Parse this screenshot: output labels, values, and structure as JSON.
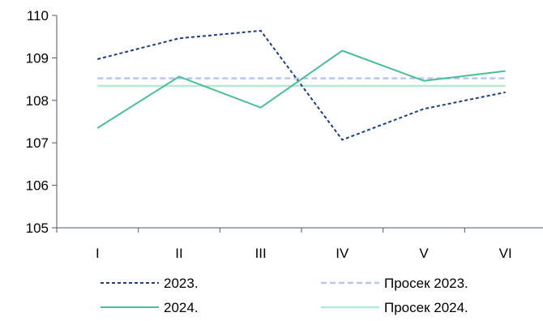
{
  "chart_data": {
    "type": "line",
    "categories": [
      "I",
      "II",
      "III",
      "IV",
      "V",
      "VI"
    ],
    "ylim": [
      105,
      110
    ],
    "yticks": [
      105,
      106,
      107,
      108,
      109,
      110
    ],
    "grid": false,
    "legend_position": "bottom",
    "series": [
      {
        "name": "2023.",
        "values": [
          108.97,
          109.46,
          109.64,
          107.07,
          107.8,
          108.19
        ],
        "color": "#1f3f7a",
        "dash": "dashed"
      },
      {
        "name": "2024.",
        "values": [
          107.35,
          108.56,
          107.83,
          109.17,
          108.46,
          108.69
        ],
        "color": "#4dbd96",
        "dash": "solid"
      },
      {
        "name": "Просек 2023.",
        "values": [
          108.52,
          108.52,
          108.52,
          108.52,
          108.52,
          108.52
        ],
        "color": "#b8c7e6",
        "dash": "dashed"
      },
      {
        "name": "Просек 2024.",
        "values": [
          108.34,
          108.34,
          108.34,
          108.34,
          108.34,
          108.34
        ],
        "color": "#b8e7d2",
        "dash": "solid"
      }
    ]
  }
}
